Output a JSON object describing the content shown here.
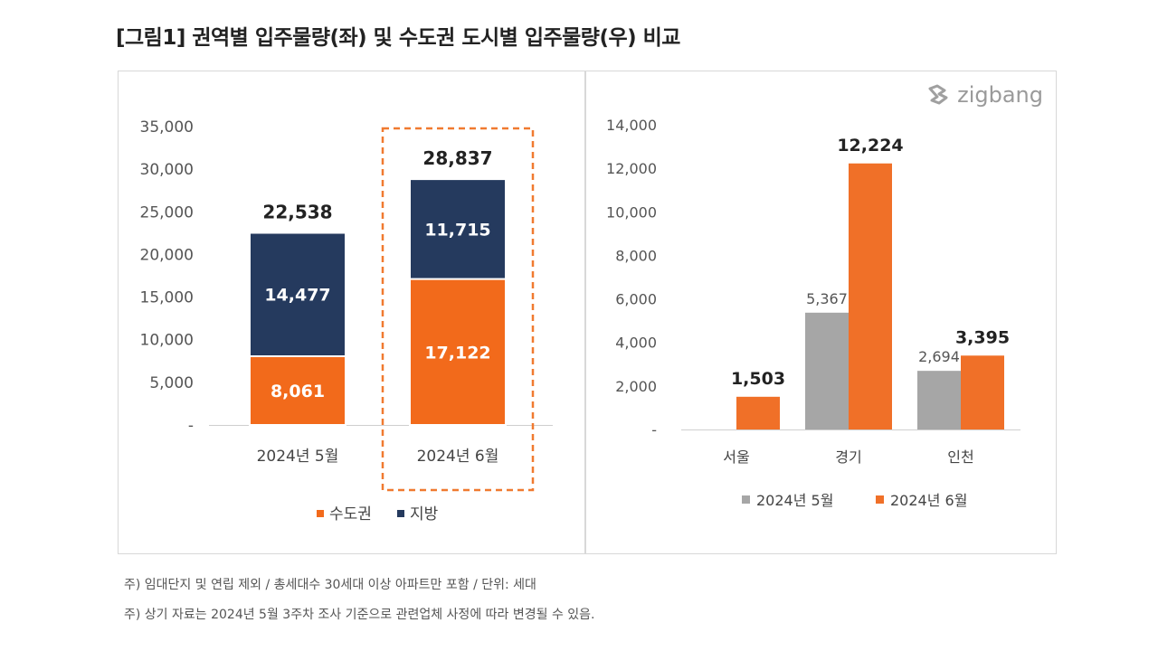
{
  "title": "[그림1] 권역별 입주물량(좌) 및 수도권 도시별 입주물량(우) 비교",
  "brand": {
    "logo_text": "zigbang",
    "icon": "zigbang-logo-icon"
  },
  "notes": [
    "주) 임대단지 및 연립 제외 / 총세대수 30세대 이상 아파트만 포함 / 단위: 세대",
    "주) 상기 자료는 2024년 5월 3주차 조사 기준으로 관련업체 사정에 따라 변경될 수 있음."
  ],
  "colors": {
    "capital": "#f26a1b",
    "regional": "#253a5e",
    "may": "#a6a6a6",
    "june": "#f07028",
    "highlight_border": "#f07a30"
  },
  "chart_data": [
    {
      "type": "bar",
      "stacked": true,
      "categories": [
        "2024년 5월",
        "2024년 6월"
      ],
      "series": [
        {
          "name": "수도권",
          "values": [
            8061,
            17122
          ],
          "labels": [
            "8,061",
            "17,122"
          ]
        },
        {
          "name": "지방",
          "values": [
            14477,
            11715
          ],
          "labels": [
            "14,477",
            "11,715"
          ]
        }
      ],
      "totals": [
        22538,
        28837
      ],
      "total_labels": [
        "22,538",
        "28,837"
      ],
      "ylim": [
        0,
        35000
      ],
      "yticks": [
        0,
        5000,
        10000,
        15000,
        20000,
        25000,
        30000,
        35000
      ],
      "ytick_labels": [
        "-",
        "5,000",
        "10,000",
        "15,000",
        "20,000",
        "25,000",
        "30,000",
        "35,000"
      ],
      "highlighted_category": "2024년 6월",
      "legend_position": "bottom"
    },
    {
      "type": "bar",
      "categories": [
        "서울",
        "경기",
        "인천"
      ],
      "series": [
        {
          "name": "2024년 5월",
          "values": [
            0,
            5367,
            2694
          ],
          "labels": [
            "",
            "5,367",
            "2,694"
          ]
        },
        {
          "name": "2024년 6월",
          "values": [
            1503,
            12224,
            3395
          ],
          "labels": [
            "1,503",
            "12,224",
            "3,395"
          ]
        }
      ],
      "ylim": [
        0,
        14000
      ],
      "yticks": [
        0,
        2000,
        4000,
        6000,
        8000,
        10000,
        12000,
        14000
      ],
      "ytick_labels": [
        "-",
        "2,000",
        "4,000",
        "6,000",
        "8,000",
        "10,000",
        "12,000",
        "14,000"
      ],
      "legend_position": "bottom"
    }
  ]
}
